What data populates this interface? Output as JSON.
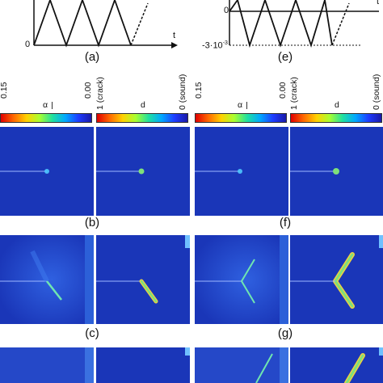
{
  "loading_plots": {
    "left": {
      "axis_t": "t",
      "origin": "0",
      "label": "(a)"
    },
    "right": {
      "axis_t": "t",
      "origin": "0",
      "min_label": "-3·10",
      "min_exp": "-3",
      "label": "(e)"
    }
  },
  "colorbars": [
    {
      "left_value": "0.15",
      "name": "α",
      "right_value": "0.00"
    },
    {
      "left_value": "1 (crack)",
      "name": "d",
      "right_value": "0 (sound)"
    },
    {
      "left_value": "0.15",
      "name": "α",
      "right_value": "0.00"
    },
    {
      "left_value": "1 (crack)",
      "name": "d",
      "right_value": "0 (sound)"
    }
  ],
  "row_labels": {
    "left": [
      "(b)",
      "(c)"
    ],
    "right": [
      "(f)",
      "(g)"
    ]
  },
  "colors": {
    "field_background": "#1a36b8",
    "crack": "#7ee07a"
  }
}
